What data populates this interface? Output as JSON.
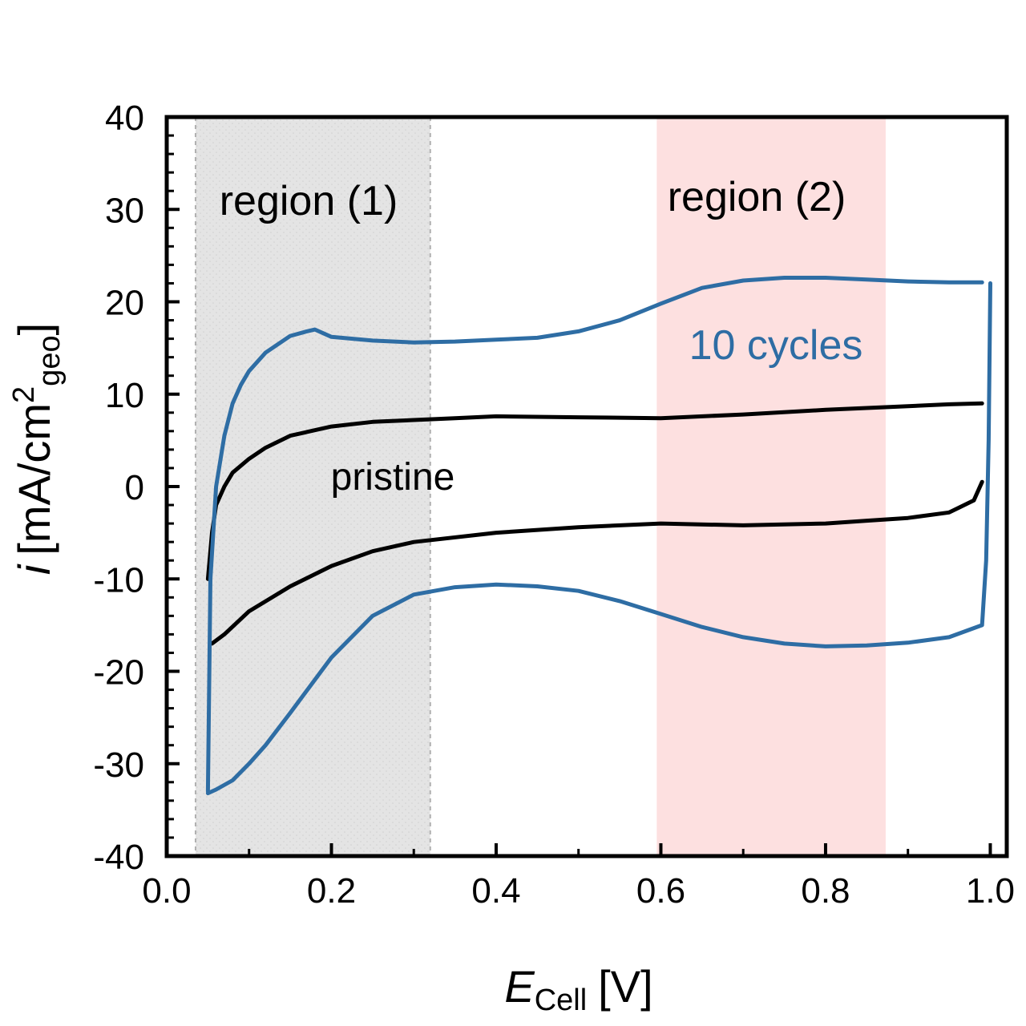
{
  "chart_data": {
    "type": "line",
    "title": "",
    "xlabel_main": "E",
    "xlabel_sub": "Cell",
    "xlabel_unit": "[V]",
    "ylabel_main": "i",
    "ylabel_pre": "[mA/cm",
    "ylabel_sup": "2",
    "ylabel_sub": "geo",
    "ylabel_post": "]",
    "xlim": [
      0.0,
      1.02
    ],
    "ylim": [
      -40,
      40
    ],
    "xticks": [
      0.0,
      0.2,
      0.4,
      0.6,
      0.8,
      1.0
    ],
    "xtick_labels": [
      "0.0",
      "0.2",
      "0.4",
      "0.6",
      "0.8",
      "1.0"
    ],
    "yticks": [
      -40,
      -30,
      -20,
      -10,
      0,
      10,
      20,
      30,
      40
    ],
    "ytick_labels": [
      "-40",
      "-30",
      "-20",
      "-10",
      "0",
      "10",
      "20",
      "30",
      "40"
    ],
    "regions": [
      {
        "label": "region (1)",
        "x_range": [
          0.035,
          0.32
        ],
        "color": "#e4e4e4"
      },
      {
        "label": "region (2)",
        "x_range": [
          0.595,
          0.873
        ],
        "color": "#fde0e0"
      }
    ],
    "annotations": [
      {
        "text": "pristine",
        "x": 0.27,
        "y": 0.5,
        "color": "#000000"
      },
      {
        "text": "10 cycles",
        "x": 0.76,
        "y": 14.5,
        "color": "#2e6da4"
      }
    ],
    "series": [
      {
        "name": "pristine",
        "color": "#000000",
        "anodic": {
          "x": [
            0.05,
            0.055,
            0.06,
            0.07,
            0.08,
            0.1,
            0.12,
            0.15,
            0.2,
            0.25,
            0.3,
            0.35,
            0.4,
            0.5,
            0.6,
            0.7,
            0.8,
            0.9,
            0.95,
            0.99
          ],
          "y": [
            -10,
            -5,
            -2,
            0,
            1.5,
            3,
            4.2,
            5.5,
            6.5,
            7.0,
            7.2,
            7.4,
            7.6,
            7.5,
            7.4,
            7.8,
            8.3,
            8.7,
            8.9,
            9.0
          ]
        },
        "cathodic": {
          "x": [
            0.99,
            0.98,
            0.95,
            0.9,
            0.85,
            0.8,
            0.7,
            0.6,
            0.5,
            0.4,
            0.3,
            0.25,
            0.2,
            0.15,
            0.1,
            0.07,
            0.055
          ],
          "y": [
            0.5,
            -1.5,
            -2.8,
            -3.4,
            -3.7,
            -4.0,
            -4.2,
            -4.0,
            -4.4,
            -5.0,
            -6.0,
            -7.0,
            -8.6,
            -10.8,
            -13.5,
            -16.0,
            -17.0
          ]
        }
      },
      {
        "name": "10 cycles",
        "color": "#2e6da4",
        "anodic": {
          "x": [
            0.05,
            0.053,
            0.06,
            0.07,
            0.08,
            0.09,
            0.1,
            0.12,
            0.15,
            0.17,
            0.18,
            0.2,
            0.25,
            0.3,
            0.35,
            0.4,
            0.45,
            0.5,
            0.55,
            0.6,
            0.65,
            0.7,
            0.75,
            0.8,
            0.85,
            0.9,
            0.95,
            0.99
          ],
          "y": [
            -33,
            -10,
            0,
            5.5,
            9,
            11,
            12.5,
            14.5,
            16.3,
            16.8,
            17.0,
            16.2,
            15.8,
            15.6,
            15.7,
            15.9,
            16.1,
            16.8,
            18,
            19.8,
            21.5,
            22.3,
            22.6,
            22.6,
            22.4,
            22.2,
            22.1,
            22.1
          ]
        },
        "cathodic": {
          "x": [
            1.0,
            0.998,
            0.995,
            0.99,
            0.95,
            0.9,
            0.85,
            0.8,
            0.75,
            0.7,
            0.65,
            0.6,
            0.55,
            0.5,
            0.45,
            0.4,
            0.35,
            0.3,
            0.25,
            0.2,
            0.15,
            0.12,
            0.1,
            0.08,
            0.06,
            0.05
          ],
          "y": [
            22,
            5,
            -8,
            -15,
            -16.3,
            -16.9,
            -17.2,
            -17.3,
            -17.0,
            -16.3,
            -15.2,
            -13.8,
            -12.4,
            -11.3,
            -10.8,
            -10.6,
            -10.9,
            -11.7,
            -14.0,
            -18.5,
            -24.5,
            -28.0,
            -30.0,
            -31.8,
            -32.8,
            -33.2
          ]
        }
      }
    ]
  }
}
